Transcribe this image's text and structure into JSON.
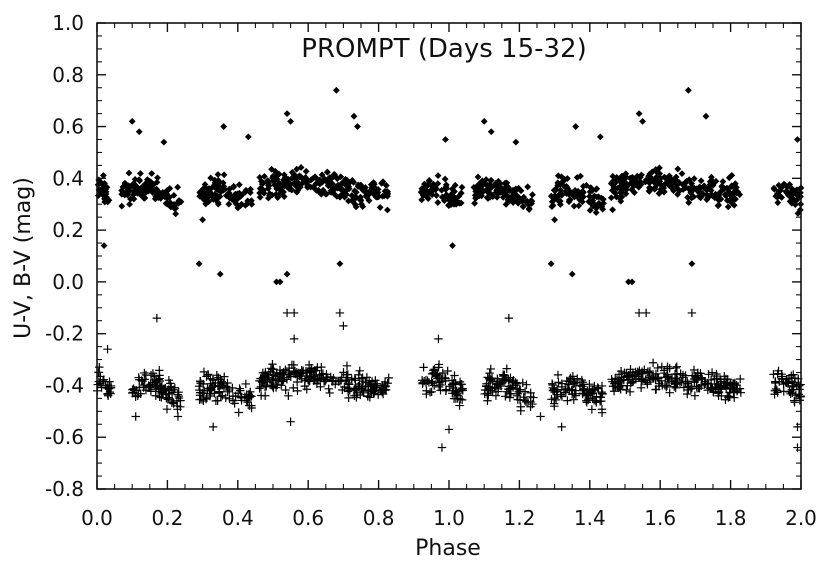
{
  "chart_data": {
    "type": "scatter",
    "title": "PROMPT (Days 15-32)",
    "xlabel": "Phase",
    "ylabel": "U-V, B-V (mag)",
    "xlim": [
      0.0,
      2.0
    ],
    "ylim": [
      -0.8,
      1.0
    ],
    "x_ticks": [
      "0.0",
      "0.2",
      "0.4",
      "0.6",
      "0.8",
      "1.0",
      "1.2",
      "1.4",
      "1.6",
      "1.8",
      "2.0"
    ],
    "y_ticks": [
      "1.0",
      "0.8",
      "0.6",
      "0.4",
      "0.2",
      "0.0",
      "-0.2",
      "-0.4",
      "-0.6",
      "-0.8"
    ],
    "grid": false,
    "series": [
      {
        "marker": "diamond",
        "color": "#000000",
        "clusters": [
          {
            "x_range": [
              0.0,
              0.04
            ],
            "y_center": 0.34,
            "y_spread": 0.06
          },
          {
            "x_range": [
              0.07,
              0.24
            ],
            "y_center": 0.34,
            "y_spread": 0.06
          },
          {
            "x_range": [
              0.29,
              0.44
            ],
            "y_center": 0.33,
            "y_spread": 0.07
          },
          {
            "x_range": [
              0.46,
              0.83
            ],
            "y_center": 0.36,
            "y_spread": 0.07
          },
          {
            "x_range": [
              0.92,
              1.04
            ],
            "y_center": 0.34,
            "y_spread": 0.06
          },
          {
            "x_range": [
              1.07,
              1.24
            ],
            "y_center": 0.34,
            "y_spread": 0.06
          },
          {
            "x_range": [
              1.29,
              1.44
            ],
            "y_center": 0.33,
            "y_spread": 0.07
          },
          {
            "x_range": [
              1.46,
              1.83
            ],
            "y_center": 0.36,
            "y_spread": 0.07
          },
          {
            "x_range": [
              1.92,
              2.0
            ],
            "y_center": 0.34,
            "y_spread": 0.06
          }
        ],
        "outliers": [
          [
            0.02,
            0.14
          ],
          [
            0.1,
            0.62
          ],
          [
            0.12,
            0.58
          ],
          [
            0.19,
            0.54
          ],
          [
            0.29,
            0.07
          ],
          [
            0.3,
            0.24
          ],
          [
            0.35,
            0.03
          ],
          [
            0.36,
            0.6
          ],
          [
            0.43,
            0.56
          ],
          [
            0.51,
            0.0
          ],
          [
            0.52,
            0.0
          ],
          [
            0.54,
            0.65
          ],
          [
            0.55,
            0.62
          ],
          [
            0.54,
            0.03
          ],
          [
            0.68,
            0.74
          ],
          [
            0.69,
            0.07
          ],
          [
            0.73,
            0.64
          ],
          [
            0.74,
            0.6
          ],
          [
            0.99,
            0.55
          ],
          [
            1.01,
            0.14
          ],
          [
            1.1,
            0.62
          ],
          [
            1.12,
            0.58
          ],
          [
            1.19,
            0.54
          ],
          [
            1.29,
            0.07
          ],
          [
            1.3,
            0.24
          ],
          [
            1.35,
            0.03
          ],
          [
            1.36,
            0.6
          ],
          [
            1.43,
            0.56
          ],
          [
            1.51,
            0.0
          ],
          [
            1.52,
            0.0
          ],
          [
            1.54,
            0.65
          ],
          [
            1.55,
            0.62
          ],
          [
            1.68,
            0.74
          ],
          [
            1.69,
            0.07
          ],
          [
            1.73,
            0.64
          ],
          [
            1.99,
            0.55
          ]
        ]
      },
      {
        "marker": "plus",
        "color": "#000000",
        "clusters": [
          {
            "x_range": [
              0.0,
              0.04
            ],
            "y_center": -0.4,
            "y_spread": 0.06
          },
          {
            "x_range": [
              0.1,
              0.24
            ],
            "y_center": -0.42,
            "y_spread": 0.07
          },
          {
            "x_range": [
              0.29,
              0.44
            ],
            "y_center": -0.43,
            "y_spread": 0.07
          },
          {
            "x_range": [
              0.46,
              0.83
            ],
            "y_center": -0.39,
            "y_spread": 0.06
          },
          {
            "x_range": [
              0.92,
              1.04
            ],
            "y_center": -0.4,
            "y_spread": 0.07
          },
          {
            "x_range": [
              1.1,
              1.24
            ],
            "y_center": -0.42,
            "y_spread": 0.07
          },
          {
            "x_range": [
              1.29,
              1.44
            ],
            "y_center": -0.43,
            "y_spread": 0.07
          },
          {
            "x_range": [
              1.46,
              1.83
            ],
            "y_center": -0.39,
            "y_spread": 0.06
          },
          {
            "x_range": [
              1.92,
              2.0
            ],
            "y_center": -0.4,
            "y_spread": 0.06
          }
        ],
        "outliers": [
          [
            0.03,
            -0.26
          ],
          [
            0.11,
            -0.52
          ],
          [
            0.17,
            -0.14
          ],
          [
            0.23,
            -0.52
          ],
          [
            0.33,
            -0.56
          ],
          [
            0.54,
            -0.12
          ],
          [
            0.56,
            -0.12
          ],
          [
            0.56,
            -0.22
          ],
          [
            0.55,
            -0.54
          ],
          [
            0.69,
            -0.12
          ],
          [
            0.7,
            -0.17
          ],
          [
            0.98,
            -0.64
          ],
          [
            0.97,
            -0.22
          ],
          [
            1.0,
            -0.57
          ],
          [
            1.17,
            -0.14
          ],
          [
            1.26,
            -0.52
          ],
          [
            1.32,
            -0.56
          ],
          [
            1.54,
            -0.12
          ],
          [
            1.56,
            -0.12
          ],
          [
            1.69,
            -0.12
          ],
          [
            1.99,
            -0.64
          ],
          [
            1.99,
            -0.56
          ]
        ]
      }
    ]
  }
}
